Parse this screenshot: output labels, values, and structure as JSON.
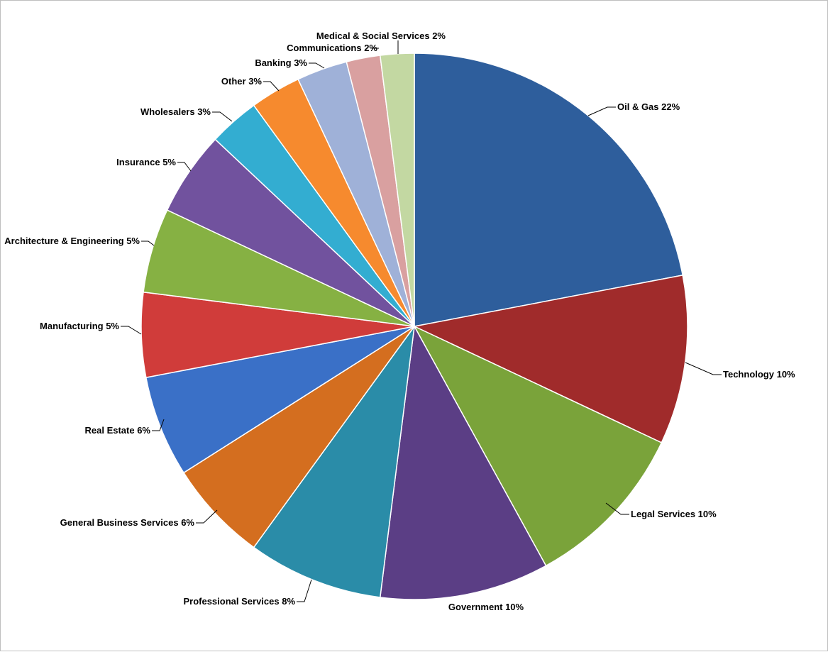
{
  "chart_data": {
    "type": "pie",
    "title": "",
    "start_angle_deg": 0,
    "direction": "clockwise",
    "legend": "none",
    "slices": [
      {
        "label": "Oil & Gas 22%",
        "value": 22,
        "color": "#2E5E9C"
      },
      {
        "label": "Technology 10%",
        "value": 10,
        "color": "#A02B2B"
      },
      {
        "label": "Legal Services 10%",
        "value": 10,
        "color": "#7AA33A"
      },
      {
        "label": "Government 10%",
        "value": 10,
        "color": "#5B3E85"
      },
      {
        "label": "Professional Services 8%",
        "value": 8,
        "color": "#2A8CA8"
      },
      {
        "label": "General Business Services 6%",
        "value": 6,
        "color": "#D46E1F"
      },
      {
        "label": "Real Estate 6%",
        "value": 6,
        "color": "#3A70C7"
      },
      {
        "label": "Manufacturing 5%",
        "value": 5,
        "color": "#D03C3A"
      },
      {
        "label": "Architecture & Engineering 5%",
        "value": 5,
        "color": "#86B143"
      },
      {
        "label": "Insurance 5%",
        "value": 5,
        "color": "#71529E"
      },
      {
        "label": "Wholesalers 3%",
        "value": 3,
        "color": "#33ADD1"
      },
      {
        "label": "Other 3%",
        "value": 3,
        "color": "#F68A2E"
      },
      {
        "label": "Banking 3%",
        "value": 3,
        "color": "#9FB1D8"
      },
      {
        "label": "Communications 2%",
        "value": 2,
        "color": "#D9A0A0"
      },
      {
        "label": "Medical & Social Services 2%",
        "value": 2,
        "color": "#C3D8A2"
      }
    ]
  }
}
